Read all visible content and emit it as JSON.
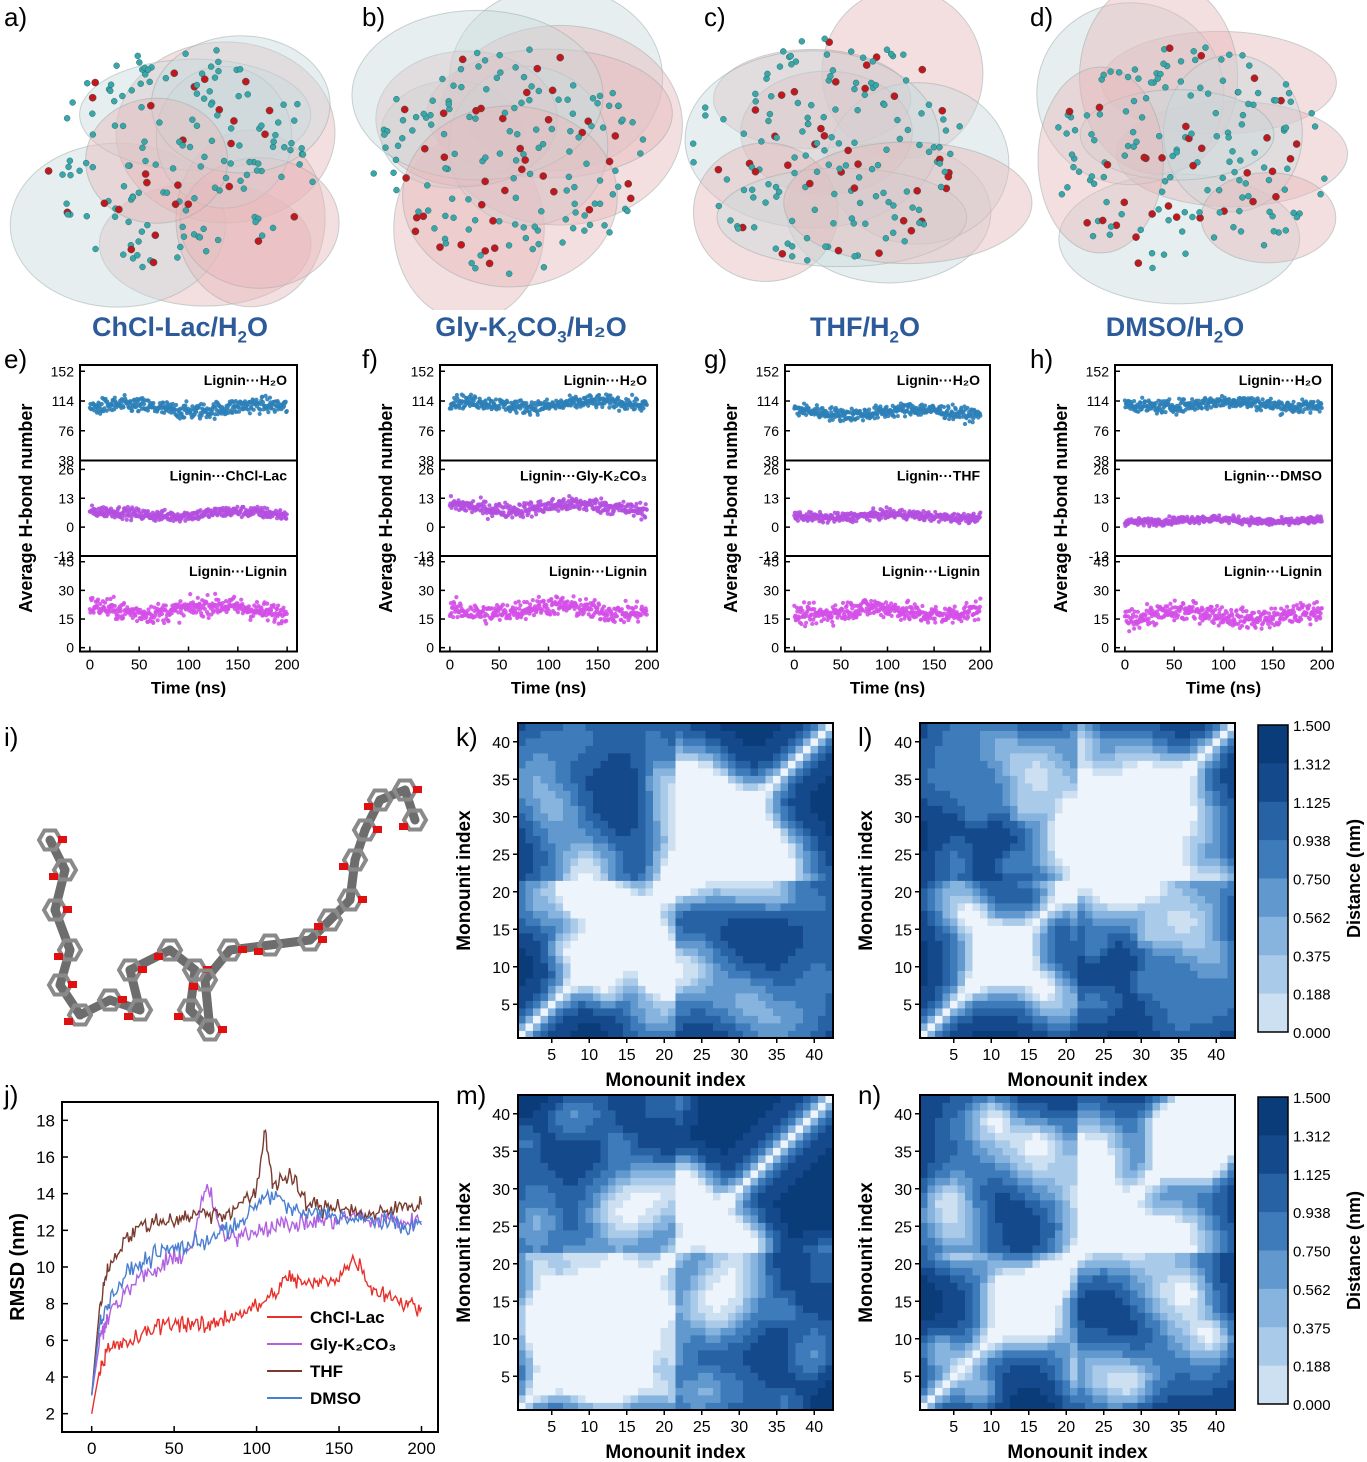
{
  "panel_labels": {
    "a": "a)",
    "b": "b)",
    "c": "c)",
    "d": "d)",
    "e": "e)",
    "f": "f)",
    "g": "g)",
    "h": "h)",
    "i": "i)",
    "j": "j)",
    "k": "k)",
    "l": "l)",
    "m": "m)",
    "n": "n)"
  },
  "system_titles": [
    {
      "pre": "ChCl-Lac/H",
      "sub1": "2",
      "post": "O",
      "sub2": "",
      "end": ""
    },
    {
      "pre": "Gly-K",
      "sub1": "2",
      "post": "CO",
      "sub2": "3",
      "end": "/H₂O"
    },
    {
      "pre": "THF/H",
      "sub1": "2",
      "post": "O",
      "sub2": "",
      "end": ""
    },
    {
      "pre": "DMSO/H",
      "sub1": "2",
      "post": "O",
      "sub2": "",
      "end": ""
    }
  ],
  "colors": {
    "h2o": "#2c7fb8",
    "solvent": "#b44fe0",
    "lignin": "#d44fe8",
    "title_blue": "#2d5b9a",
    "chcl": "#e8302a",
    "gly": "#b060e0",
    "thf": "#7a3b2e",
    "dmso": "#4a7fd0",
    "map_dark": "#0b3c7a",
    "map_light": "#eef4fb"
  },
  "chart_data": [
    {
      "panel": "e",
      "type": "scatter",
      "xlabel": "Time (ns)",
      "ylabel": "Average H-bond number",
      "xlim": [
        -10,
        210
      ],
      "xticks": [
        0,
        50,
        100,
        150,
        200
      ],
      "subplots": [
        {
          "name": "Lignin···H₂O",
          "yticks": [
            38,
            76,
            114,
            152
          ],
          "ylim": [
            38,
            160
          ],
          "mean": 105,
          "spread": 12
        },
        {
          "name": "Lignin···ChCl-Lac",
          "yticks": [
            -13,
            0,
            13,
            26
          ],
          "ylim": [
            -13,
            30
          ],
          "mean": 6,
          "spread": 3
        },
        {
          "name": "Lignin···Lignin",
          "yticks": [
            0,
            15,
            30,
            45
          ],
          "ylim": [
            -2,
            48
          ],
          "mean": 20,
          "spread": 6
        }
      ]
    },
    {
      "panel": "f",
      "type": "scatter",
      "xlabel": "Time (ns)",
      "ylabel": "Average H-bond number",
      "xlim": [
        -10,
        210
      ],
      "xticks": [
        0,
        50,
        100,
        150,
        200
      ],
      "subplots": [
        {
          "name": "Lignin···H₂O",
          "yticks": [
            38,
            76,
            114,
            152
          ],
          "ylim": [
            38,
            160
          ],
          "mean": 110,
          "spread": 10
        },
        {
          "name": "Lignin···Gly-K₂CO₃",
          "yticks": [
            -13,
            0,
            13,
            26
          ],
          "ylim": [
            -13,
            30
          ],
          "mean": 9,
          "spread": 4
        },
        {
          "name": "Lignin···Lignin",
          "yticks": [
            0,
            15,
            30,
            45
          ],
          "ylim": [
            -2,
            48
          ],
          "mean": 20,
          "spread": 6
        }
      ]
    },
    {
      "panel": "g",
      "type": "scatter",
      "xlabel": "Time (ns)",
      "ylabel": "Average H-bond number",
      "xlim": [
        -10,
        210
      ],
      "xticks": [
        0,
        50,
        100,
        150,
        200
      ],
      "subplots": [
        {
          "name": "Lignin···H₂O",
          "yticks": [
            38,
            76,
            114,
            152
          ],
          "ylim": [
            38,
            160
          ],
          "mean": 100,
          "spread": 10
        },
        {
          "name": "Lignin···THF",
          "yticks": [
            -13,
            0,
            13,
            26
          ],
          "ylim": [
            -13,
            30
          ],
          "mean": 5,
          "spread": 2.5
        },
        {
          "name": "Lignin···Lignin",
          "yticks": [
            0,
            15,
            30,
            45
          ],
          "ylim": [
            -2,
            48
          ],
          "mean": 19,
          "spread": 6
        }
      ]
    },
    {
      "panel": "h",
      "type": "scatter",
      "xlabel": "Time (ns)",
      "ylabel": "Average H-bond number",
      "xlim": [
        -10,
        210
      ],
      "xticks": [
        0,
        50,
        100,
        150,
        200
      ],
      "subplots": [
        {
          "name": "Lignin···H₂O",
          "yticks": [
            38,
            76,
            114,
            152
          ],
          "ylim": [
            38,
            160
          ],
          "mean": 110,
          "spread": 10
        },
        {
          "name": "Lignin···DMSO",
          "yticks": [
            -13,
            0,
            13,
            26
          ],
          "ylim": [
            -13,
            30
          ],
          "mean": 3,
          "spread": 2
        },
        {
          "name": "Lignin···Lignin",
          "yticks": [
            0,
            15,
            30,
            45
          ],
          "ylim": [
            -2,
            48
          ],
          "mean": 17,
          "spread": 6
        }
      ]
    },
    {
      "panel": "j",
      "type": "line",
      "xlabel": "Time (ns)",
      "ylabel": "RMSD (nm)",
      "xlim": [
        -18,
        210
      ],
      "ylim": [
        1,
        19
      ],
      "xticks": [
        0,
        50,
        100,
        150,
        200
      ],
      "yticks": [
        2,
        4,
        6,
        8,
        10,
        12,
        14,
        16,
        18
      ],
      "legend": "bottom-right",
      "series": [
        {
          "name": "ChCl-Lac",
          "x": [
            0,
            5,
            10,
            20,
            30,
            40,
            50,
            60,
            70,
            80,
            90,
            100,
            110,
            120,
            130,
            140,
            150,
            160,
            170,
            180,
            190,
            200
          ],
          "y": [
            2,
            4.5,
            5.5,
            5.8,
            6.2,
            6.8,
            7,
            6.9,
            6.7,
            7.2,
            7.5,
            7.8,
            8.5,
            9.5,
            9,
            9.2,
            9.5,
            10.5,
            8.8,
            8.5,
            8,
            7.8
          ]
        },
        {
          "name": "Gly-K₂CO₃",
          "x": [
            0,
            5,
            10,
            20,
            30,
            40,
            50,
            60,
            70,
            80,
            90,
            100,
            110,
            120,
            130,
            140,
            150,
            160,
            170,
            180,
            190,
            200
          ],
          "y": [
            3,
            6,
            7.5,
            8.5,
            9.5,
            9.8,
            10.5,
            11,
            14.5,
            11.5,
            11.8,
            12,
            12.3,
            12.3,
            12.4,
            12.5,
            12.6,
            12.8,
            12.5,
            12.6,
            12.4,
            12.5
          ]
        },
        {
          "name": "THF",
          "x": [
            0,
            5,
            10,
            20,
            30,
            40,
            50,
            60,
            70,
            80,
            90,
            100,
            105,
            110,
            120,
            130,
            140,
            150,
            160,
            170,
            180,
            190,
            200
          ],
          "y": [
            3,
            8,
            10,
            11.5,
            12.2,
            12.5,
            12.6,
            12.8,
            13,
            12.8,
            13.5,
            14,
            17.5,
            14.5,
            15,
            13.5,
            13.2,
            13.4,
            13,
            12.8,
            13,
            13.4,
            13.4
          ]
        },
        {
          "name": "DMSO",
          "x": [
            0,
            5,
            10,
            20,
            30,
            40,
            50,
            60,
            70,
            80,
            90,
            100,
            110,
            120,
            130,
            140,
            150,
            160,
            170,
            180,
            190,
            200
          ],
          "y": [
            3,
            7,
            8,
            9.5,
            10.2,
            10.8,
            11,
            11.2,
            11.5,
            12,
            12.2,
            13.5,
            14,
            13.2,
            12.8,
            13,
            12.8,
            12.5,
            12.6,
            12.4,
            12.2,
            12.3
          ]
        }
      ]
    },
    {
      "panel": "k",
      "type": "heatmap",
      "xlabel": "Monounit index",
      "ylabel": "Monounit index",
      "xticks": [
        5,
        10,
        15,
        20,
        25,
        30,
        35,
        40
      ],
      "yticks": [
        5,
        10,
        15,
        20,
        25,
        30,
        35,
        40
      ],
      "range": [
        1,
        42
      ]
    },
    {
      "panel": "l",
      "type": "heatmap",
      "xlabel": "Monounit index",
      "ylabel": "Monounit index",
      "xticks": [
        5,
        10,
        15,
        20,
        25,
        30,
        35,
        40
      ],
      "yticks": [
        5,
        10,
        15,
        20,
        25,
        30,
        35,
        40
      ],
      "range": [
        1,
        42
      ],
      "colorbar": {
        "label": "Distance (nm)",
        "ticks": [
          "1.500",
          "1.312",
          "1.125",
          "0.938",
          "0.750",
          "0.562",
          "0.375",
          "0.188",
          "0.000"
        ]
      }
    },
    {
      "panel": "m",
      "type": "heatmap",
      "xlabel": "Monounit index",
      "ylabel": "Monounit index",
      "xticks": [
        5,
        10,
        15,
        20,
        25,
        30,
        35,
        40
      ],
      "yticks": [
        5,
        10,
        15,
        20,
        25,
        30,
        35,
        40
      ],
      "range": [
        1,
        42
      ]
    },
    {
      "panel": "n",
      "type": "heatmap",
      "xlabel": "Monounit index",
      "ylabel": "Monounit index",
      "xticks": [
        5,
        10,
        15,
        20,
        25,
        30,
        35,
        40
      ],
      "yticks": [
        5,
        10,
        15,
        20,
        25,
        30,
        35,
        40
      ],
      "range": [
        1,
        42
      ],
      "colorbar": {
        "label": "Distance (nm)",
        "ticks": [
          "1.500",
          "1.312",
          "1.125",
          "0.938",
          "0.750",
          "0.562",
          "0.375",
          "0.188",
          "0.000"
        ]
      }
    }
  ]
}
